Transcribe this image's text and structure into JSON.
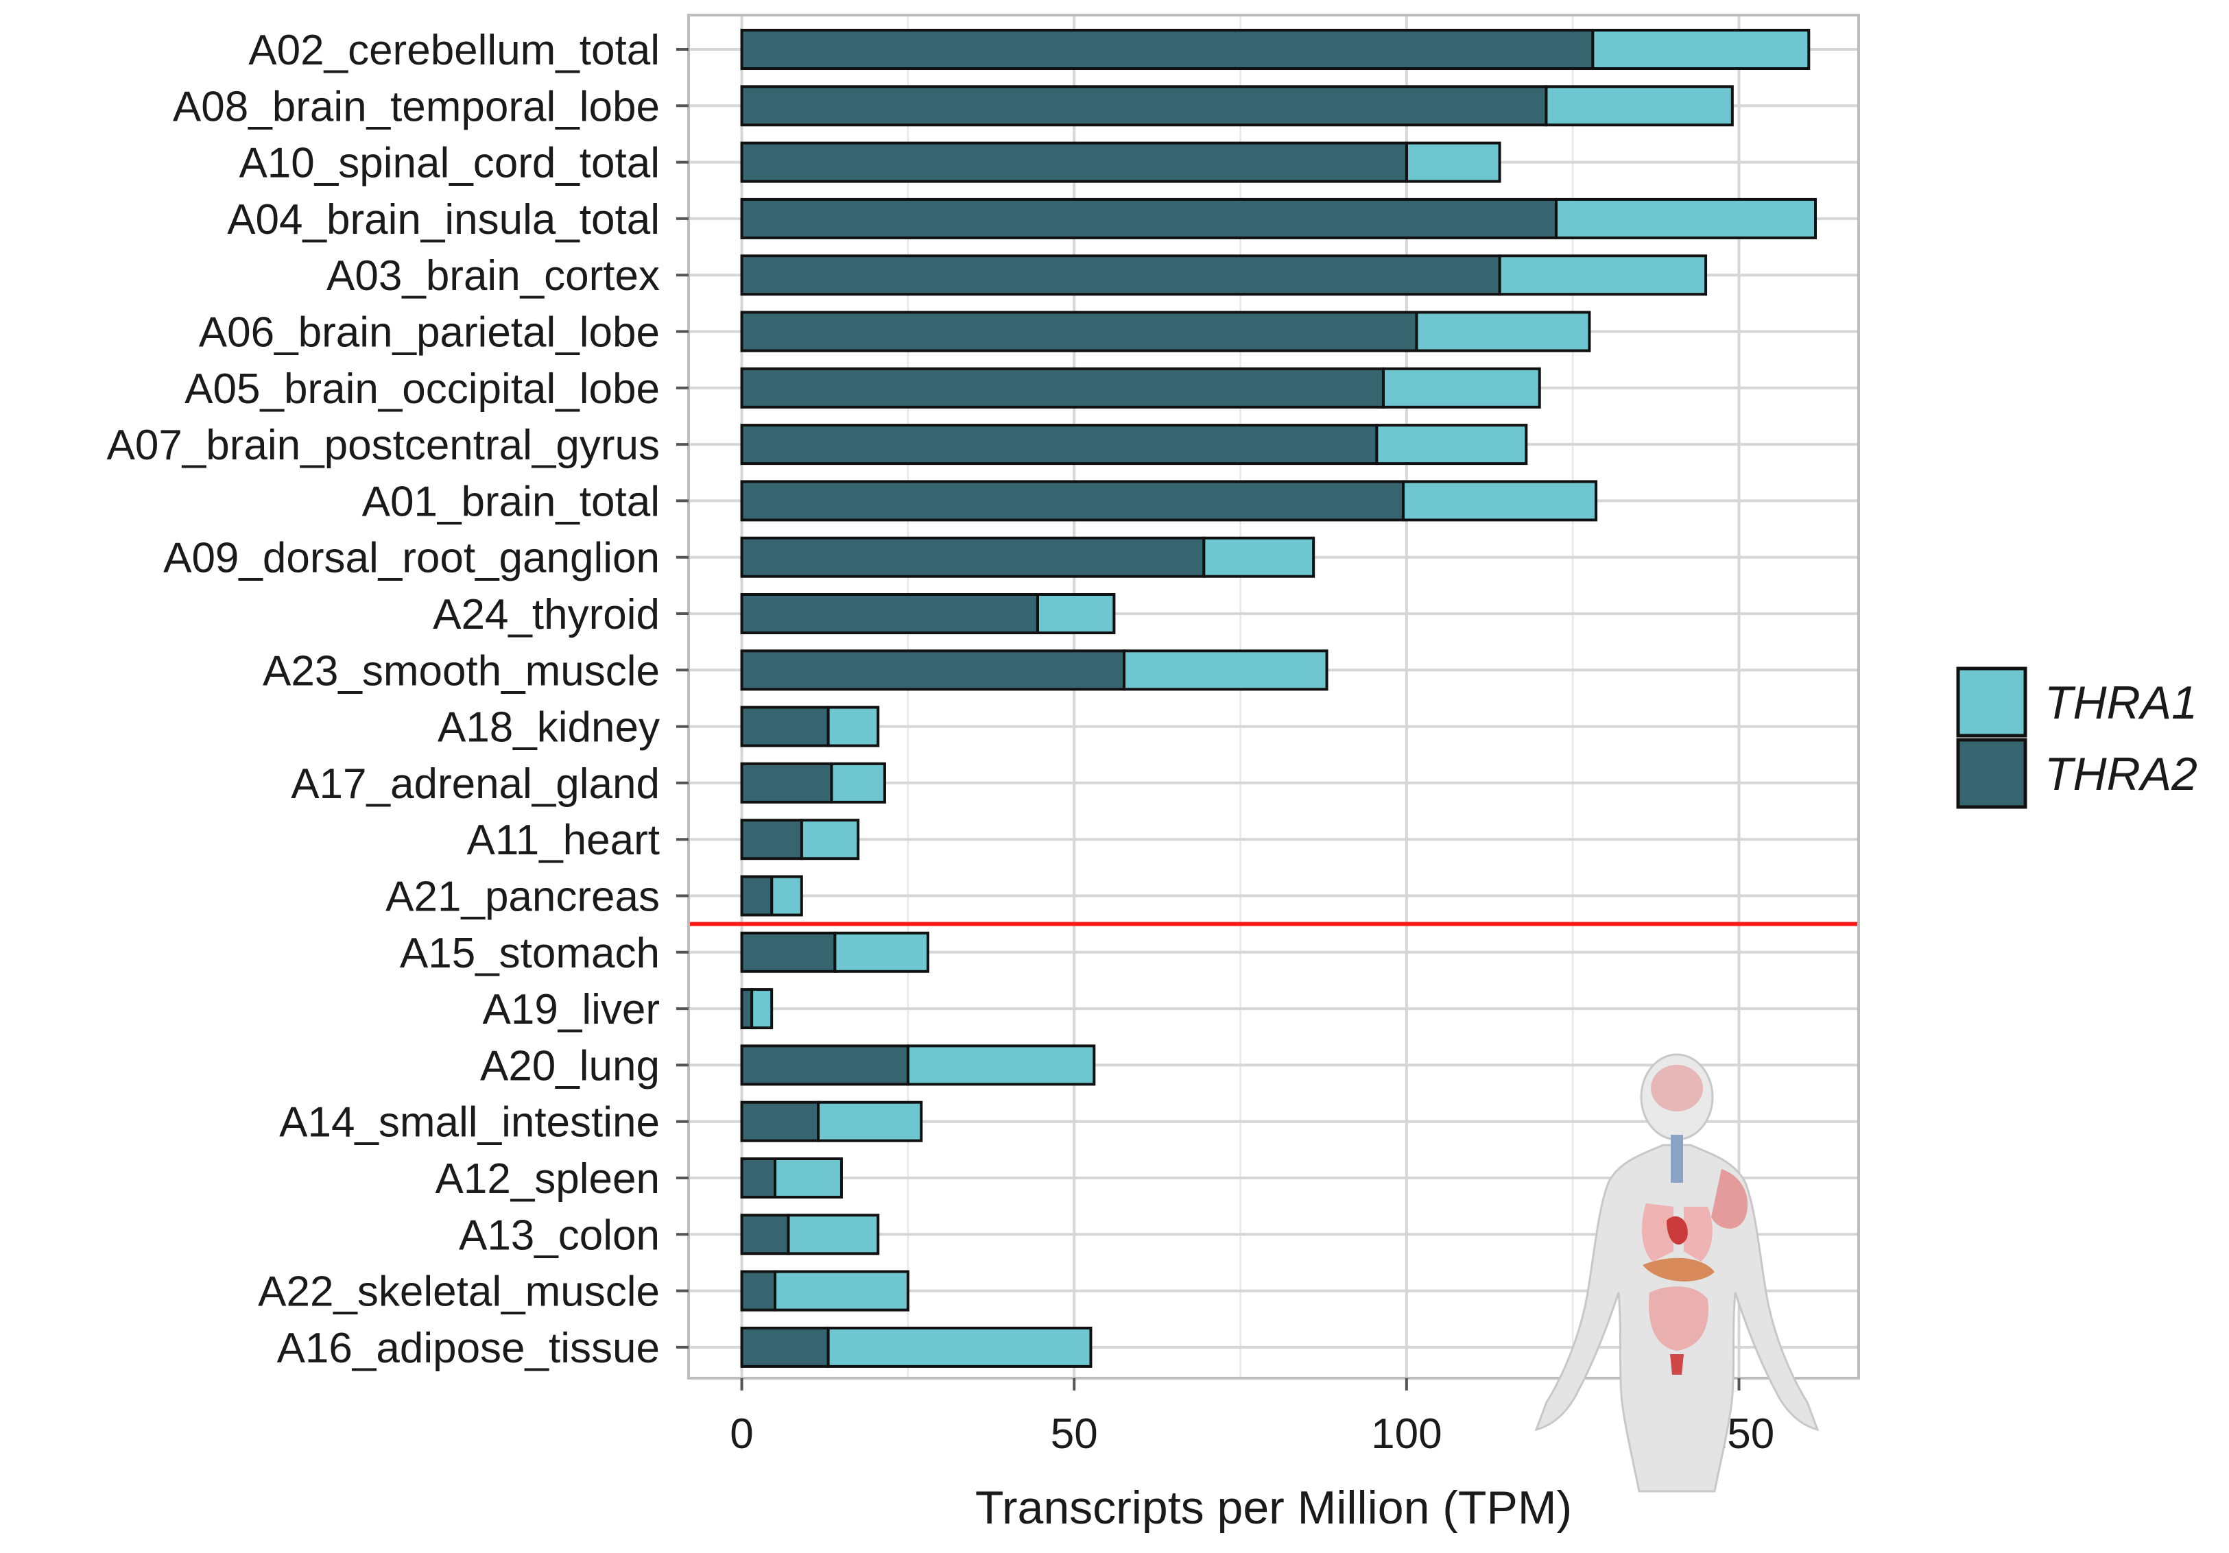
{
  "chart_data": {
    "type": "bar",
    "orientation": "horizontal",
    "stacked": true,
    "title": "",
    "xlabel": "Transcripts per Million (TPM)",
    "ylabel": "",
    "xlim": [
      -8,
      168
    ],
    "xticks": [
      0,
      50,
      100,
      150
    ],
    "grid": true,
    "legend_position": "right",
    "categories": [
      "A02_cerebellum_total",
      "A08_brain_temporal_lobe",
      "A10_spinal_cord_total",
      "A04_brain_insula_total",
      "A03_brain_cortex",
      "A06_brain_parietal_lobe",
      "A05_brain_occipital_lobe",
      "A07_brain_postcentral_gyrus",
      "A01_brain_total",
      "A09_dorsal_root_ganglion",
      "A24_thyroid",
      "A23_smooth_muscle",
      "A18_kidney",
      "A17_adrenal_gland",
      "A11_heart",
      "A21_pancreas",
      "A15_stomach",
      "A19_liver",
      "A20_lung",
      "A14_small_intestine",
      "A12_spleen",
      "A13_colon",
      "A22_skeletal_muscle",
      "A16_adipose_tissue"
    ],
    "series": [
      {
        "name": "THRA2",
        "color": "#366570",
        "values": [
          128,
          121,
          100,
          122.5,
          114,
          101.5,
          96.5,
          95.5,
          99.5,
          69.5,
          44.5,
          57.5,
          13,
          13.5,
          9,
          4.5,
          14,
          1.5,
          25,
          11.5,
          5,
          7,
          5,
          13
        ]
      },
      {
        "name": "THRA1",
        "color": "#6ec6d0",
        "values": [
          32.5,
          28,
          14,
          39,
          31,
          26,
          23.5,
          22.5,
          29,
          16.5,
          11.5,
          30.5,
          7.5,
          8,
          8.5,
          4.5,
          14,
          3,
          28,
          15.5,
          10,
          13.5,
          20,
          39.5
        ]
      }
    ],
    "threshold_line": {
      "after_category": "A21_pancreas",
      "color": "#ff1a1a"
    },
    "legend": [
      {
        "label": "THRA1",
        "color": "#6ec6d0"
      },
      {
        "label": "THRA2",
        "color": "#366570"
      }
    ],
    "annotation_icon": "human-anatomy-icon"
  }
}
